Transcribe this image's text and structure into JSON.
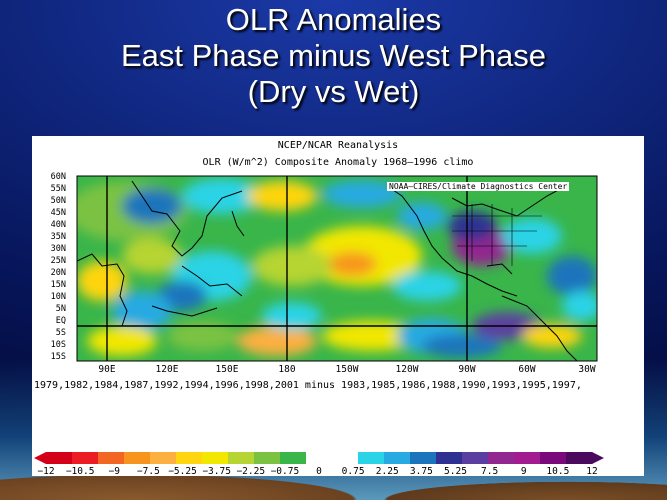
{
  "slide": {
    "title_lines": [
      "OLR Anomalies",
      "East Phase minus West Phase",
      "(Dry vs Wet)"
    ]
  },
  "figure": {
    "header_line1": "NCEP/NCAR Reanalysis",
    "header_line2": "OLR (W/m^2) Composite Anomaly 1968–1996 climo",
    "credit": "NOAA–CIRES/Climate Diagnostics Center",
    "lat_labels": [
      "60N",
      "55N",
      "50N",
      "45N",
      "40N",
      "35N",
      "30N",
      "25N",
      "20N",
      "15N",
      "10N",
      "5N",
      "EQ",
      "5S",
      "10S",
      "15S"
    ],
    "lon_labels": [
      "90E",
      "120E",
      "150E",
      "180",
      "150W",
      "120W",
      "90W",
      "60W",
      "30W"
    ],
    "years_caption": "1979,1982,1984,1987,1992,1994,1996,1998,2001  minus  1983,1985,1986,1988,1990,1993,1995,1997,",
    "colorbar": {
      "tick_labels": [
        "−12",
        "−10.5",
        "−9",
        "−7.5",
        "−5.25",
        "−3.75",
        "−2.25",
        "−0.75",
        "0",
        "0.75",
        "2.25",
        "3.75",
        "5.25",
        "7.5",
        "9",
        "10.5",
        "12"
      ],
      "colors": [
        "#d4001a",
        "#ec1c24",
        "#f26522",
        "#f7941d",
        "#fbb040",
        "#fed50e",
        "#f2e700",
        "#b6d433",
        "#7cc242",
        "#39b54a",
        "#ffffff",
        "#ffffff",
        "#2ad3e6",
        "#27aae1",
        "#1c75bc",
        "#2e3192",
        "#5b3fa0",
        "#92278f",
        "#a21c8f",
        "#7a0a7a",
        "#4b0a5e"
      ]
    }
  }
}
